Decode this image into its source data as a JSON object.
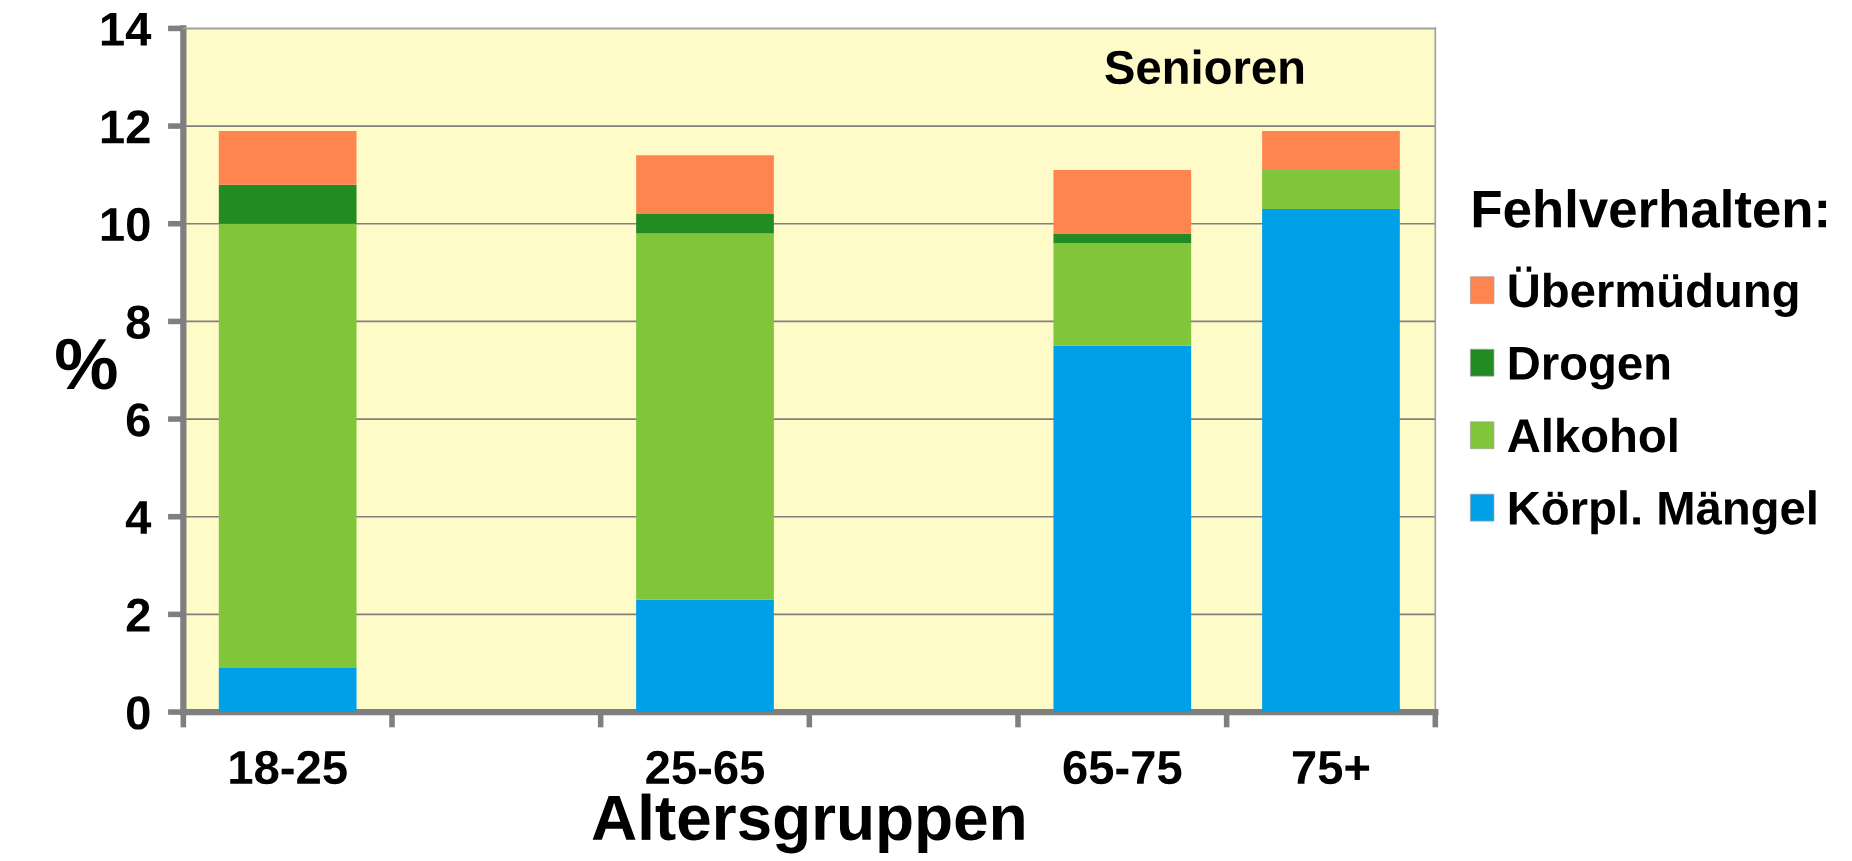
{
  "chart_data": {
    "type": "bar",
    "stacked": true,
    "xlabel": "Altersgruppen",
    "ylabel": "%",
    "legend_title": "Fehlverhalten:",
    "annotations": [
      "Senioren"
    ],
    "categories": [
      "18-25",
      null,
      "25-65",
      null,
      "65-75",
      "75+"
    ],
    "series": [
      {
        "name": "Körpl. Mängel",
        "color": "#00a0e8",
        "values": [
          0.9,
          null,
          2.3,
          null,
          7.5,
          10.3
        ]
      },
      {
        "name": "Alkohol",
        "color": "#80c53a",
        "values": [
          9.1,
          null,
          7.5,
          null,
          2.1,
          0.8
        ]
      },
      {
        "name": "Drogen",
        "color": "#228b22",
        "values": [
          0.8,
          null,
          0.4,
          null,
          0.2,
          null
        ]
      },
      {
        "name": "Übermüdung",
        "color": "#ff8550",
        "values": [
          1.1,
          null,
          1.2,
          null,
          1.3,
          0.8
        ]
      }
    ],
    "ylim": [
      0,
      14
    ],
    "yticks": [
      0,
      2,
      4,
      6,
      8,
      10,
      12,
      14
    ],
    "grid": "y",
    "legend": "right"
  }
}
